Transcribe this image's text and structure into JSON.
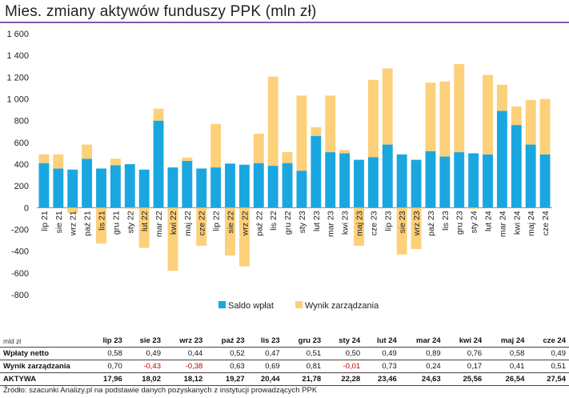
{
  "title": "Mies. zmiany aktywów funduszy PPK (mln zł)",
  "colors": {
    "saldo": "#1aa7e0",
    "wynik": "#fdd07a",
    "accent": "#7b5ea7",
    "negative": "#c00000"
  },
  "chart_data": {
    "type": "bar",
    "stacked": true,
    "ylim": [
      -800,
      1600
    ],
    "yticks": [
      -800,
      -600,
      -400,
      -200,
      0,
      200,
      400,
      600,
      800,
      1000,
      1200,
      1400,
      1600
    ],
    "ytick_labels": [
      "-800",
      "-600",
      "-400",
      "-200",
      "0",
      "200",
      "400",
      "600",
      "800",
      "1 000",
      "1 200",
      "1 400",
      "1 600"
    ],
    "grid": false,
    "legend_position": "bottom-right",
    "categories": [
      "lip 21",
      "sie 21",
      "wrz 21",
      "paź 21",
      "lis 21",
      "gru 21",
      "sty 22",
      "lut 22",
      "mar 22",
      "kwi 22",
      "maj 22",
      "cze 22",
      "lip 22",
      "sie 22",
      "wrz 22",
      "paź 22",
      "lis 22",
      "gru 22",
      "sty 23",
      "lut 23",
      "mar 23",
      "kwi 23",
      "maj 23",
      "cze 23",
      "lip 23",
      "sie 23",
      "wrz 23",
      "paź 23",
      "lis 23",
      "gru 23",
      "sty 24",
      "lut 24",
      "mar 24",
      "kwi 24",
      "maj 24",
      "cze 24"
    ],
    "series": [
      {
        "name": "Saldo wpłat",
        "values": [
          410,
          360,
          350,
          450,
          360,
          390,
          400,
          350,
          800,
          370,
          430,
          360,
          370,
          405,
          395,
          410,
          385,
          410,
          340,
          660,
          510,
          500,
          440,
          465,
          580,
          490,
          440,
          520,
          470,
          510,
          500,
          490,
          890,
          760,
          580,
          490
        ]
      },
      {
        "name": "Wynik zarządzania",
        "values": [
          80,
          130,
          -50,
          130,
          -330,
          60,
          -10,
          -370,
          110,
          -580,
          30,
          -350,
          400,
          -440,
          -540,
          270,
          820,
          100,
          690,
          80,
          520,
          30,
          -350,
          710,
          700,
          -430,
          -380,
          630,
          690,
          810,
          -10,
          730,
          240,
          170,
          410,
          510
        ]
      }
    ]
  },
  "table": {
    "unit_label": "mld zł",
    "columns": [
      "lip 23",
      "sie 23",
      "wrz 23",
      "paź 23",
      "lis 23",
      "gru 23",
      "sty 24",
      "lut 24",
      "mar 24",
      "kwi 24",
      "maj 24",
      "cze 24"
    ],
    "rows": [
      {
        "label": "Wpłaty netto",
        "values": [
          "0,58",
          "0,49",
          "0,44",
          "0,52",
          "0,47",
          "0,51",
          "0,50",
          "0,49",
          "0,89",
          "0,76",
          "0,58",
          "0,49"
        ]
      },
      {
        "label": "Wynik zarządzania",
        "values": [
          "0,70",
          "-0,43",
          "-0,38",
          "0,63",
          "0,69",
          "0,81",
          "-0,01",
          "0,73",
          "0,24",
          "0,17",
          "0,41",
          "0,51"
        ]
      },
      {
        "label": "AKTYWA",
        "values": [
          "17,96",
          "18,02",
          "18,12",
          "19,27",
          "20,44",
          "21,78",
          "22,28",
          "23,46",
          "24,63",
          "25,56",
          "26,54",
          "27,54"
        ]
      }
    ]
  },
  "source": "Źródło: szacunki Analizy.pl na podstawie danych pozyskanych z instytucji prowadzących PPK"
}
